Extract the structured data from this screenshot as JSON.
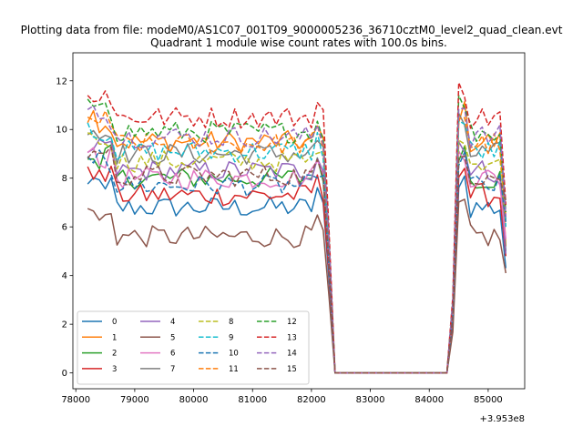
{
  "chart_data": {
    "type": "line",
    "suptitle": "Plotting data from file: modeM0/AS1C07_001T09_9000005236_36710cztM0_level2_quad_clean.evt",
    "title": "Quadrant 1 module wise count rates with 100.0s bins.",
    "xlabel": "",
    "ylabel": "",
    "x_offset_label": "+3.953e8",
    "xlim": [
      77950,
      85620
    ],
    "ylim": [
      -0.65,
      13.15
    ],
    "x_ticks": [
      78000,
      79000,
      80000,
      81000,
      82000,
      83000,
      84000,
      85000
    ],
    "y_ticks": [
      0,
      2,
      4,
      6,
      8,
      10,
      12
    ],
    "grid": false,
    "legend_position": "lower-left",
    "legend_columns": 4,
    "series": [
      {
        "name": "0",
        "color": "#1f77b4",
        "style": "solid",
        "base": 6.8,
        "end": 4.3
      },
      {
        "name": "1",
        "color": "#ff7f0e",
        "style": "solid",
        "base": 9.5,
        "end": 5.2
      },
      {
        "name": "2",
        "color": "#2ca02c",
        "style": "solid",
        "base": 8.0,
        "end": 5.0
      },
      {
        "name": "3",
        "color": "#d62728",
        "style": "solid",
        "base": 7.3,
        "end": 4.8
      },
      {
        "name": "4",
        "color": "#9467bd",
        "style": "solid",
        "base": 8.3,
        "end": 4.9
      },
      {
        "name": "5",
        "color": "#8c564b",
        "style": "solid",
        "base": 5.6,
        "end": 4.1
      },
      {
        "name": "6",
        "color": "#e377c2",
        "style": "solid",
        "base": 8.0,
        "end": 5.5
      },
      {
        "name": "7",
        "color": "#7f7f7f",
        "style": "solid",
        "base": 9.0,
        "end": 6.3
      },
      {
        "name": "8",
        "color": "#bcbd22",
        "style": "dashed",
        "base": 8.7,
        "end": 6.6
      },
      {
        "name": "9",
        "color": "#17becf",
        "style": "dashed",
        "base": 9.1,
        "end": 6.0
      },
      {
        "name": "10",
        "color": "#1f77b4",
        "style": "dashed",
        "base": 7.7,
        "end": 6.2
      },
      {
        "name": "11",
        "color": "#ff7f0e",
        "style": "dashed",
        "base": 9.4,
        "end": 6.4
      },
      {
        "name": "12",
        "color": "#2ca02c",
        "style": "dashed",
        "base": 9.9,
        "end": 6.6
      },
      {
        "name": "13",
        "color": "#d62728",
        "style": "dashed",
        "base": 10.5,
        "end": 6.9
      },
      {
        "name": "14",
        "color": "#9467bd",
        "style": "dashed",
        "base": 9.7,
        "end": 6.4
      },
      {
        "name": "15",
        "color": "#8c564b",
        "style": "dashed",
        "base": 8.1,
        "end": 7.1
      }
    ],
    "segments": {
      "active_1": [
        78200,
        82200
      ],
      "gap": [
        82400,
        84300
      ],
      "active_2": [
        84500,
        85200
      ],
      "end": 85300,
      "bin": 100
    }
  }
}
